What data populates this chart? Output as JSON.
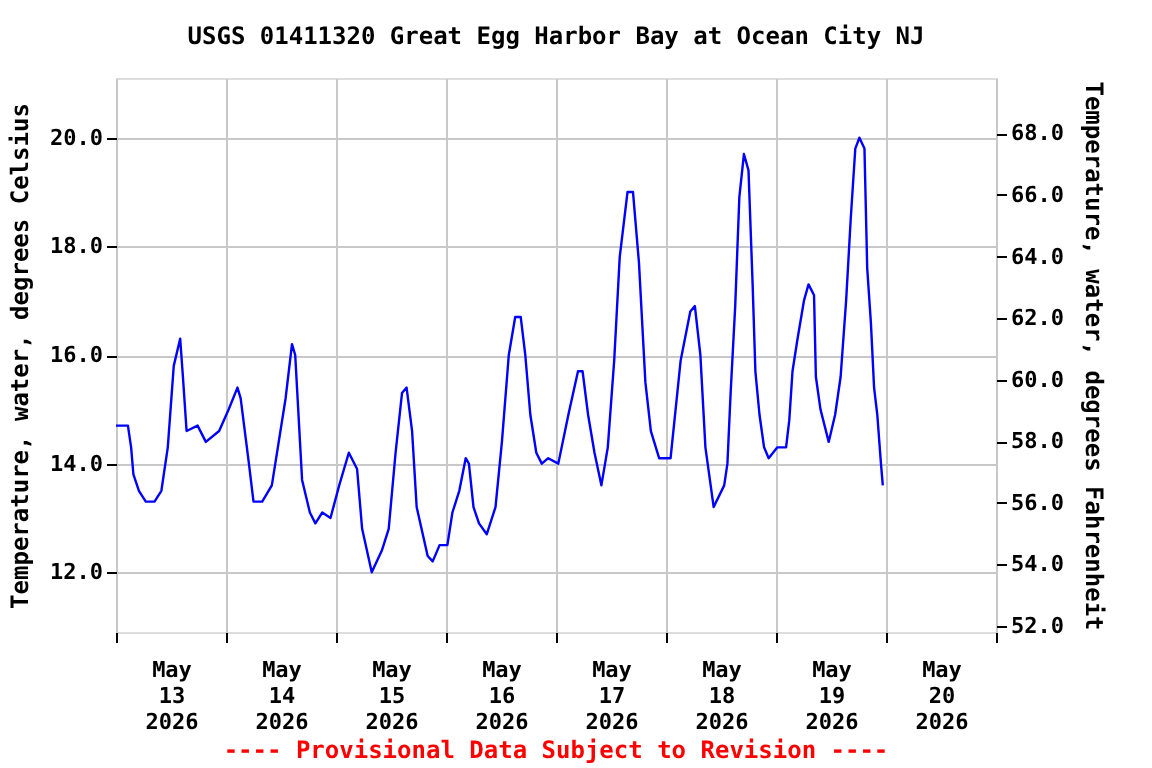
{
  "chart_data": {
    "type": "line",
    "title": "USGS 01411320 Great Egg Harbor Bay at Ocean City NJ",
    "ylabel": "Temperature, water, degrees Celsius",
    "y2label": "Temperature, water, degrees Fahrenheit",
    "annotations": [
      "---- Provisional Data Subject to Revision ----"
    ],
    "color": "#0000ff",
    "grid": true,
    "xlim": [
      "2026-05-13T00:00",
      "2026-05-21T00:00"
    ],
    "xticks": [
      {
        "value": "2026-05-13T00:00",
        "label": null
      },
      {
        "value": "2026-05-13T12:00",
        "label": "May\n13\n2026"
      },
      {
        "value": "2026-05-14T00:00",
        "label": null
      },
      {
        "value": "2026-05-14T12:00",
        "label": "May\n14\n2026"
      },
      {
        "value": "2026-05-15T00:00",
        "label": null
      },
      {
        "value": "2026-05-15T12:00",
        "label": "May\n15\n2026"
      },
      {
        "value": "2026-05-16T00:00",
        "label": null
      },
      {
        "value": "2026-05-16T12:00",
        "label": "May\n16\n2026"
      },
      {
        "value": "2026-05-17T00:00",
        "label": null
      },
      {
        "value": "2026-05-17T12:00",
        "label": "May\n17\n2026"
      },
      {
        "value": "2026-05-18T00:00",
        "label": null
      },
      {
        "value": "2026-05-18T12:00",
        "label": "May\n18\n2026"
      },
      {
        "value": "2026-05-19T00:00",
        "label": null
      },
      {
        "value": "2026-05-19T12:00",
        "label": "May\n19\n2026"
      },
      {
        "value": "2026-05-20T00:00",
        "label": null
      },
      {
        "value": "2026-05-20T12:00",
        "label": "May\n20\n2026"
      },
      {
        "value": "2026-05-21T00:00",
        "label": null
      }
    ],
    "ylim": [
      10.9,
      21.1
    ],
    "yticks": [
      {
        "value": 12,
        "label": "12.0"
      },
      {
        "value": 14,
        "label": "14.0"
      },
      {
        "value": 16,
        "label": "16.0"
      },
      {
        "value": 18,
        "label": "18.0"
      },
      {
        "value": 20,
        "label": "20.0"
      }
    ],
    "y2lim": [
      51.8,
      69.8
    ],
    "y2ticks": [
      {
        "value": 52,
        "label": "52.0"
      },
      {
        "value": 54,
        "label": "54.0"
      },
      {
        "value": 56,
        "label": "56.0"
      },
      {
        "value": 58,
        "label": "58.0"
      },
      {
        "value": 60,
        "label": "60.0"
      },
      {
        "value": 62,
        "label": "62.0"
      },
      {
        "value": 64,
        "label": "64.0"
      },
      {
        "value": 66,
        "label": "66.0"
      },
      {
        "value": 68,
        "label": "68.0"
      }
    ],
    "x": [
      "2026-05-13T00:00",
      "2026-05-13T02:36",
      "2026-05-13T03:18",
      "2026-05-13T03:48",
      "2026-05-13T05:00",
      "2026-05-13T06:30",
      "2026-05-13T08:24",
      "2026-05-13T09:54",
      "2026-05-13T11:18",
      "2026-05-13T12:36",
      "2026-05-13T14:00",
      "2026-05-13T14:36",
      "2026-05-13T15:24",
      "2026-05-13T17:48",
      "2026-05-13T19:36",
      "2026-05-13T22:30",
      "2026-05-14T00:36",
      "2026-05-14T02:30",
      "2026-05-14T03:12",
      "2026-05-14T05:00",
      "2026-05-14T06:00",
      "2026-05-14T07:54",
      "2026-05-14T10:00",
      "2026-05-14T13:00",
      "2026-05-14T14:24",
      "2026-05-14T15:06",
      "2026-05-14T16:36",
      "2026-05-14T18:18",
      "2026-05-14T19:30",
      "2026-05-14T21:00",
      "2026-05-14T22:48",
      "2026-05-15T00:42",
      "2026-05-15T02:48",
      "2026-05-15T04:36",
      "2026-05-15T05:42",
      "2026-05-15T07:48",
      "2026-05-15T10:00",
      "2026-05-15T11:30",
      "2026-05-15T13:00",
      "2026-05-15T14:24",
      "2026-05-15T15:24",
      "2026-05-15T16:36",
      "2026-05-15T17:36",
      "2026-05-15T20:00",
      "2026-05-15T21:06",
      "2026-05-15T22:36",
      "2026-05-16T00:18",
      "2026-05-16T01:24",
      "2026-05-16T02:54",
      "2026-05-16T04:18",
      "2026-05-16T05:00",
      "2026-05-16T06:00",
      "2026-05-16T07:12",
      "2026-05-16T08:54",
      "2026-05-16T10:48",
      "2026-05-16T12:12",
      "2026-05-16T13:42",
      "2026-05-16T15:06",
      "2026-05-16T16:18",
      "2026-05-16T17:18",
      "2026-05-16T18:24",
      "2026-05-16T19:42",
      "2026-05-16T20:54",
      "2026-05-16T22:18",
      "2026-05-17T00:30",
      "2026-05-17T02:42",
      "2026-05-17T04:48",
      "2026-05-17T05:48",
      "2026-05-17T07:00",
      "2026-05-17T08:24",
      "2026-05-17T09:54",
      "2026-05-17T11:18",
      "2026-05-17T12:42",
      "2026-05-17T13:54",
      "2026-05-17T15:36",
      "2026-05-17T16:48",
      "2026-05-17T18:06",
      "2026-05-17T19:30",
      "2026-05-17T20:42",
      "2026-05-17T22:30",
      "2026-05-18T01:00",
      "2026-05-18T03:12",
      "2026-05-18T05:18",
      "2026-05-18T06:18",
      "2026-05-18T07:30",
      "2026-05-18T08:36",
      "2026-05-18T10:24",
      "2026-05-18T12:42",
      "2026-05-18T13:24",
      "2026-05-18T14:06",
      "2026-05-18T15:06",
      "2026-05-18T16:00",
      "2026-05-18T17:00",
      "2026-05-18T18:00",
      "2026-05-18T18:54",
      "2026-05-18T19:30",
      "2026-05-18T20:24",
      "2026-05-18T21:24",
      "2026-05-18T22:24",
      "2026-05-19T00:18",
      "2026-05-19T02:12",
      "2026-05-19T02:54",
      "2026-05-19T03:36",
      "2026-05-19T04:42",
      "2026-05-19T06:06",
      "2026-05-19T07:06",
      "2026-05-19T08:18",
      "2026-05-19T08:42",
      "2026-05-19T09:42",
      "2026-05-19T11:30",
      "2026-05-19T12:54",
      "2026-05-19T14:06",
      "2026-05-19T15:18",
      "2026-05-19T16:18",
      "2026-05-19T17:18",
      "2026-05-19T18:12",
      "2026-05-19T19:18",
      "2026-05-19T19:54",
      "2026-05-19T20:42",
      "2026-05-19T21:24",
      "2026-05-19T22:06",
      "2026-05-19T22:54",
      "2026-05-19T23:18"
    ],
    "values": [
      14.7,
      14.7,
      14.3,
      13.8,
      13.5,
      13.3,
      13.3,
      13.5,
      14.3,
      15.8,
      16.3,
      15.6,
      14.6,
      14.7,
      14.4,
      14.6,
      15.0,
      15.4,
      15.2,
      14.0,
      13.3,
      13.3,
      13.6,
      15.2,
      16.2,
      16.0,
      13.7,
      13.1,
      12.9,
      13.1,
      13.0,
      13.6,
      14.2,
      13.9,
      12.8,
      12.0,
      12.4,
      12.8,
      14.2,
      15.3,
      15.4,
      14.6,
      13.2,
      12.3,
      12.2,
      12.5,
      12.5,
      13.1,
      13.5,
      14.1,
      14.0,
      13.2,
      12.9,
      12.7,
      13.2,
      14.4,
      16.0,
      16.7,
      16.7,
      16.0,
      14.9,
      14.2,
      14.0,
      14.1,
      14.0,
      14.9,
      15.7,
      15.7,
      14.9,
      14.2,
      13.6,
      14.3,
      15.9,
      17.8,
      19.0,
      19.0,
      17.7,
      15.5,
      14.6,
      14.1,
      14.1,
      15.9,
      16.8,
      16.9,
      16.0,
      14.3,
      13.2,
      13.6,
      14.0,
      15.3,
      16.9,
      18.9,
      19.7,
      19.4,
      17.3,
      15.7,
      14.9,
      14.3,
      14.1,
      14.3,
      14.3,
      14.8,
      15.7,
      16.3,
      17.0,
      17.3,
      17.1,
      15.6,
      15.0,
      14.4,
      14.9,
      15.6,
      17.0,
      18.5,
      19.8,
      20.0,
      19.8,
      17.6,
      16.6,
      15.4,
      14.9,
      14.0,
      13.6
    ]
  }
}
